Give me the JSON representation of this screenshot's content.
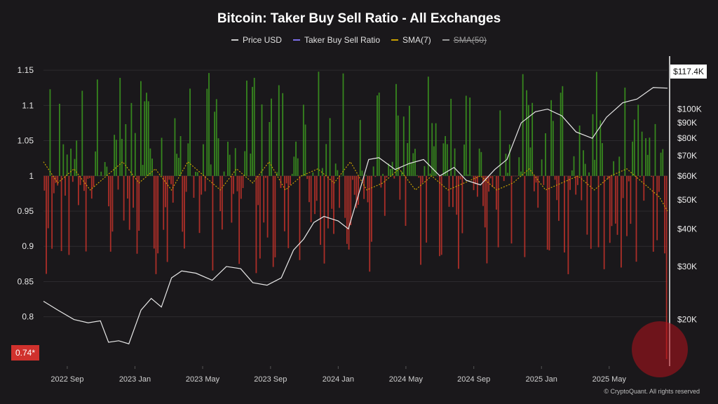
{
  "title": "Bitcoin: Taker Buy Sell Ratio - All Exchanges",
  "legend": [
    {
      "label": "Price USD",
      "color": "#cccccc",
      "enabled": true
    },
    {
      "label": "Taker Buy Sell Ratio",
      "color": "#7b6ee8",
      "enabled": true
    },
    {
      "label": "SMA(7)",
      "color": "#c8a000",
      "enabled": true
    },
    {
      "label": "SMA(50)",
      "color": "#9a9a9a",
      "enabled": false
    }
  ],
  "footer": "© CryptoQuant. All rights reserved",
  "chart_data": {
    "type": "bar",
    "title": "Bitcoin: Taker Buy Sell Ratio - All Exchanges",
    "baseline": 1,
    "ylim": [
      0.73,
      1.17
    ],
    "y_ticks": [
      0.8,
      0.85,
      0.9,
      0.95,
      1,
      1.05,
      1.1,
      1.15
    ],
    "y_tick_labels": [
      "0.8",
      "0.85",
      "0.9",
      "0.95",
      "1",
      "1.05",
      "1.1",
      "1.15"
    ],
    "x_ticks": [
      "2022 Sep",
      "2023 Jan",
      "2023 May",
      "2023 Sep",
      "2024 Jan",
      "2024 May",
      "2024 Sep",
      "2025 Jan",
      "2025 May"
    ],
    "x_tick_months": [
      2022.667,
      2023.0,
      2023.333,
      2023.667,
      2024.0,
      2024.333,
      2024.667,
      2025.0,
      2025.333
    ],
    "x_range": [
      2022.55,
      2025.62
    ],
    "ratio_range": [
      0.86,
      1.15
    ],
    "last_value": 0.74,
    "last_value_label": "0.74*",
    "positive_color": "#3c9a1e",
    "negative_color": "#c6322a",
    "sma_color": "#c8a000",
    "price_axis": {
      "scale": "log",
      "range": [
        14000,
        150000
      ],
      "ticks": [
        20000,
        30000,
        40000,
        50000,
        60000,
        70000,
        80000,
        90000,
        100000
      ],
      "tick_labels": [
        "$20K",
        "$30K",
        "$40K",
        "$50K",
        "$60K",
        "$70K",
        "$80K",
        "$90K",
        "$100K"
      ],
      "last_price_label": "$117.4K"
    },
    "price_series": {
      "name": "Price USD",
      "x": [
        2022.55,
        2022.62,
        2022.7,
        2022.77,
        2022.83,
        2022.87,
        2022.92,
        2022.97,
        2023.03,
        2023.08,
        2023.13,
        2023.18,
        2023.23,
        2023.3,
        2023.38,
        2023.45,
        2023.52,
        2023.58,
        2023.65,
        2023.72,
        2023.78,
        2023.83,
        2023.88,
        2023.93,
        2024.0,
        2024.05,
        2024.1,
        2024.15,
        2024.2,
        2024.28,
        2024.35,
        2024.42,
        2024.5,
        2024.57,
        2024.63,
        2024.7,
        2024.77,
        2024.83,
        2024.9,
        2024.97,
        2025.03,
        2025.1,
        2025.17,
        2025.25,
        2025.32,
        2025.4,
        2025.47,
        2025.55,
        2025.62
      ],
      "values": [
        23000,
        21500,
        20000,
        19500,
        19800,
        16800,
        17000,
        16600,
        21500,
        23500,
        22000,
        27500,
        29000,
        28500,
        27000,
        30000,
        29500,
        26500,
        26000,
        27500,
        34000,
        37000,
        42000,
        44000,
        42500,
        40000,
        52000,
        68000,
        69000,
        63000,
        66000,
        68000,
        60000,
        64000,
        58000,
        56000,
        63000,
        68000,
        90000,
        98000,
        100000,
        95000,
        84000,
        80000,
        94000,
        105000,
        108000,
        118000,
        117400
      ]
    },
    "sma_series": {
      "name": "SMA(7)",
      "x": [
        2022.55,
        2022.62,
        2022.7,
        2022.78,
        2022.86,
        2022.94,
        2023.02,
        2023.1,
        2023.18,
        2023.26,
        2023.34,
        2023.42,
        2023.5,
        2023.58,
        2023.66,
        2023.74,
        2023.82,
        2023.9,
        2023.98,
        2024.06,
        2024.14,
        2024.22,
        2024.3,
        2024.38,
        2024.46,
        2024.54,
        2024.62,
        2024.7,
        2024.78,
        2024.86,
        2024.94,
        2025.02,
        2025.1,
        2025.18,
        2025.26,
        2025.34,
        2025.42,
        2025.5,
        2025.58,
        2025.62
      ],
      "values": [
        1.02,
        0.99,
        1.01,
        0.98,
        1.0,
        1.02,
        0.99,
        1.01,
        0.98,
        1.02,
        1.0,
        0.98,
        1.01,
        0.99,
        1.02,
        0.98,
        1.0,
        1.01,
        0.99,
        1.02,
        0.98,
        0.99,
        1.01,
        0.98,
        1.0,
        0.98,
        0.99,
        1.0,
        0.98,
        0.99,
        1.01,
        0.98,
        0.99,
        1.0,
        0.98,
        1.0,
        1.01,
        0.99,
        0.97,
        0.95
      ]
    }
  }
}
